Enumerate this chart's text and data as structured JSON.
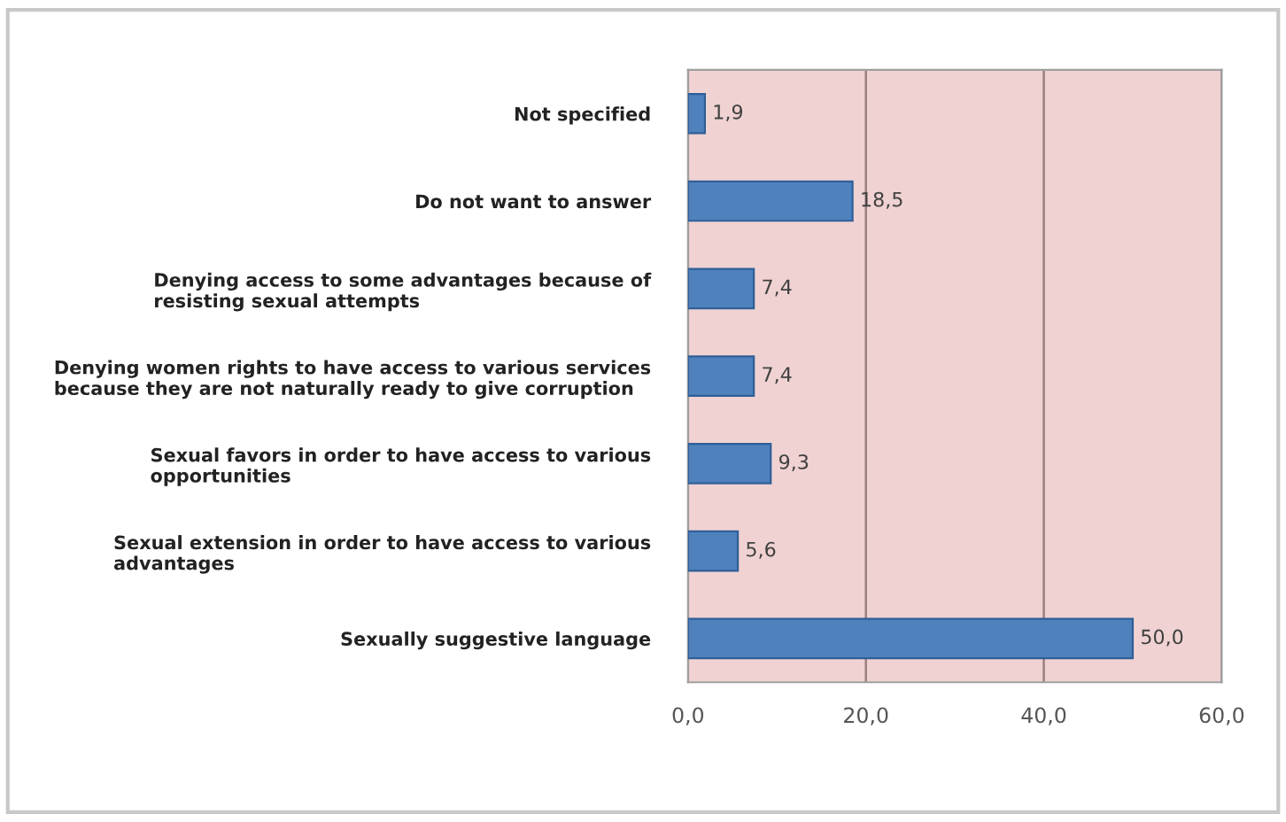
{
  "chart_data": {
    "type": "bar",
    "orientation": "horizontal",
    "categories": [
      "Not specified",
      "Do not want to answer",
      "Denying access to some advantages because of\nresisting sexual attempts",
      "Denying women rights to have access to various services\nbecause they are not naturally ready to give corruption",
      "Sexual favors in order to have access to various\nopportunities",
      "Sexual extension in order to have access to various\nadvantages",
      "Sexually suggestive language"
    ],
    "values": [
      1.9,
      18.5,
      7.4,
      7.4,
      9.3,
      5.6,
      50.0
    ],
    "value_labels": [
      "1,9",
      "18,5",
      "7,4",
      "7,4",
      "9,3",
      "5,6",
      "50,0"
    ],
    "color": "#4f81bd",
    "xlim": [
      0,
      60
    ],
    "xticks": [
      {
        "value": 0,
        "label": "0,0"
      },
      {
        "value": 20,
        "label": "20,0"
      },
      {
        "value": 40,
        "label": "40,0"
      },
      {
        "value": 60,
        "label": "60,0"
      }
    ],
    "grid": "x"
  }
}
